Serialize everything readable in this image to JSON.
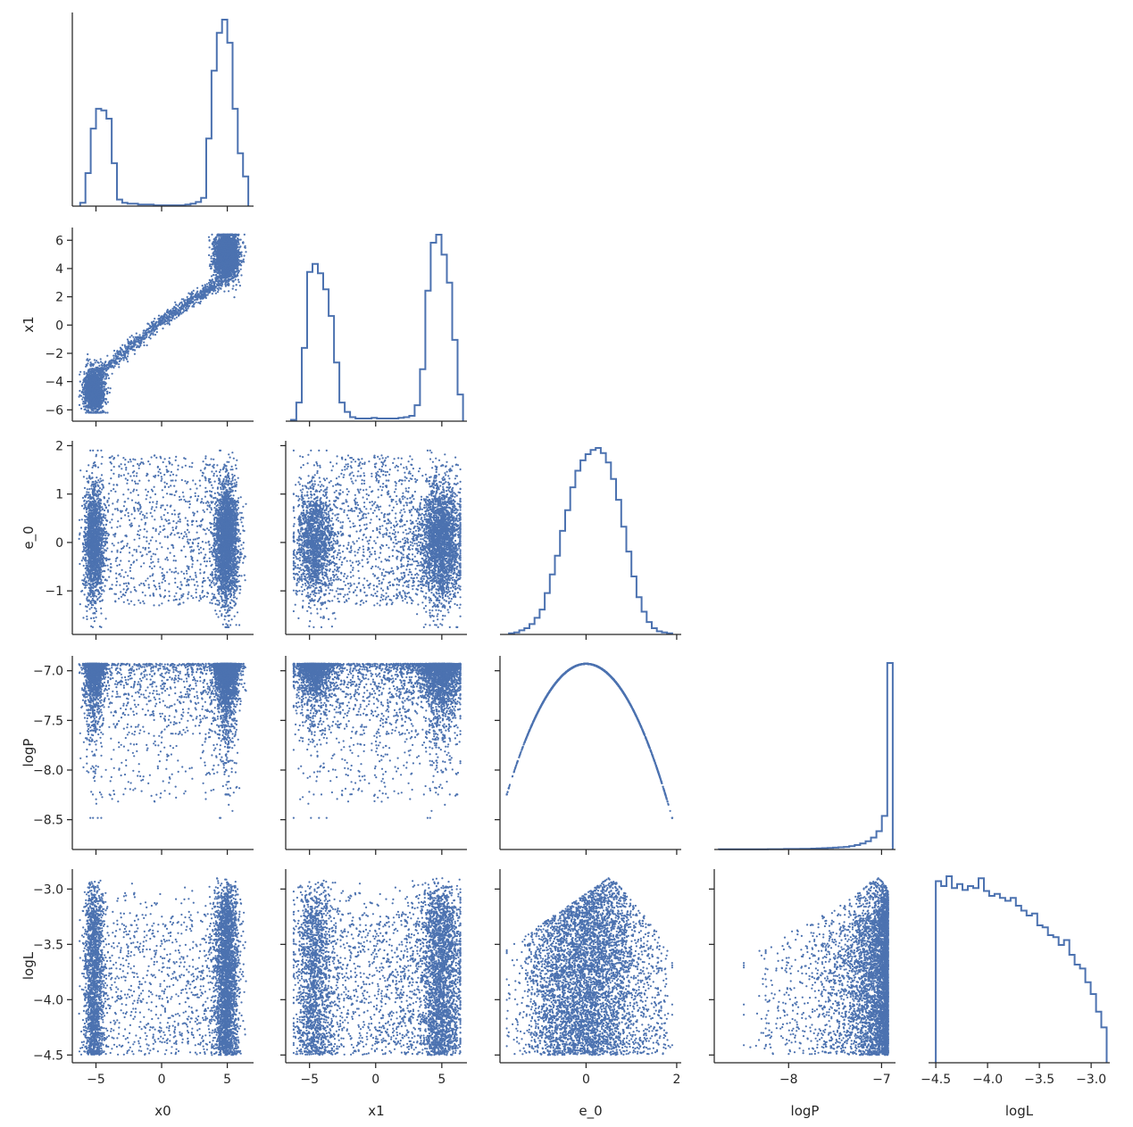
{
  "chart_data": {
    "type": "scatter",
    "variables": [
      "x0",
      "x1",
      "e_0",
      "logP",
      "logL"
    ],
    "layout": "corner pairplot (lower triangle scatter, diagonal step histograms)",
    "color": "#4c72b0",
    "diagonal": "histogram (step)",
    "offdiagonal": "scatter",
    "axes": {
      "x0": {
        "label": "x0",
        "range": [
          -6.8,
          7.0
        ],
        "ticks": [
          -5,
          0,
          5
        ],
        "tick_labels": [
          "−5",
          "0",
          "5"
        ]
      },
      "x1": {
        "label": "x1",
        "range": [
          -6.8,
          6.9
        ],
        "ticks": [
          -6,
          -4,
          -2,
          0,
          2,
          4,
          6
        ],
        "tick_labels": [
          "−6",
          "−4",
          "−2",
          "0",
          "2",
          "4",
          "6"
        ],
        "x_ticks": [
          -5,
          0,
          5
        ],
        "x_tick_labels": [
          "−5",
          "0",
          "5"
        ]
      },
      "e_0": {
        "label": "e_0",
        "range": [
          -1.9,
          2.1
        ],
        "ticks": [
          -1,
          0,
          1,
          2
        ],
        "tick_labels": [
          "−1",
          "0",
          "1",
          "2"
        ],
        "x_ticks": [
          0,
          2
        ],
        "x_tick_labels": [
          "0",
          "2"
        ]
      },
      "logP": {
        "label": "logP",
        "range": [
          -8.8,
          -6.85
        ],
        "ticks": [
          -8.5,
          -8.0,
          -7.5,
          -7.0
        ],
        "tick_labels": [
          "−8.5",
          "−8.0",
          "−7.5",
          "−7.0"
        ],
        "x_ticks": [
          -8,
          -7
        ],
        "x_tick_labels": [
          "−8",
          "−7"
        ]
      },
      "logL": {
        "label": "logL",
        "range": [
          -4.57,
          -2.82
        ],
        "ticks": [
          -4.5,
          -4.0,
          -3.5,
          -3.0
        ],
        "tick_labels": [
          "−4.5",
          "−4.0",
          "−3.5",
          "−3.0"
        ],
        "x_ticks": [
          -4.5,
          -4.0,
          -3.5,
          -3.0
        ],
        "x_tick_labels": [
          "−4.5",
          "−4.0",
          "−3.5",
          "−3.0"
        ]
      }
    },
    "histograms": {
      "x0": {
        "bin_edges_range": [
          -6.2,
          6.6
        ],
        "counts": [
          4,
          40,
          94,
          118,
          116,
          106,
          52,
          8,
          4,
          3,
          3,
          2,
          2,
          2,
          1,
          1,
          1,
          1,
          1,
          1,
          2,
          3,
          5,
          10,
          82,
          164,
          210,
          226,
          198,
          118,
          64,
          36
        ]
      },
      "x1": {
        "bin_edges_range": [
          -6.4,
          6.6
        ],
        "counts": [
          2,
          28,
          110,
          224,
          236,
          222,
          198,
          158,
          88,
          28,
          14,
          6,
          4,
          4,
          4,
          5,
          4,
          4,
          4,
          4,
          5,
          6,
          8,
          24,
          78,
          196,
          268,
          280,
          250,
          208,
          122,
          40
        ]
      },
      "e_0": {
        "bin_edges_range": [
          -1.7,
          1.9
        ],
        "counts": [
          1,
          2,
          4,
          6,
          10,
          16,
          24,
          40,
          58,
          76,
          100,
          120,
          142,
          158,
          168,
          174,
          178,
          180,
          175,
          166,
          150,
          130,
          104,
          80,
          56,
          36,
          22,
          12,
          6,
          3,
          2,
          1
        ]
      },
      "logP": {
        "bin_edges_range": [
          -8.75,
          -6.88
        ],
        "counts": [
          1,
          1,
          1,
          1,
          1,
          1,
          1,
          1,
          1,
          2,
          2,
          2,
          3,
          3,
          3,
          4,
          4,
          5,
          6,
          7,
          8,
          10,
          12,
          14,
          18,
          24,
          32,
          44,
          64,
          98,
          180,
          1000
        ]
      },
      "logL": {
        "bin_edges_range": [
          -4.5,
          -2.85
        ],
        "counts": [
          185,
          180,
          190,
          178,
          182,
          176,
          180,
          178,
          188,
          175,
          170,
          172,
          168,
          165,
          168,
          160,
          155,
          150,
          152,
          140,
          138,
          130,
          128,
          120,
          125,
          110,
          100,
          96,
          82,
          70,
          52,
          36
        ]
      }
    }
  }
}
